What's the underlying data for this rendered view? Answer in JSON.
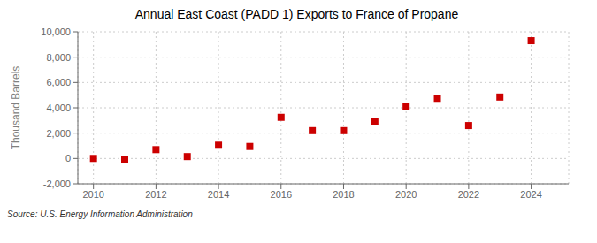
{
  "chart_data": {
    "type": "scatter",
    "title": "Annual East Coast (PADD 1) Exports to France of Propane",
    "ylabel": "Thousand Barrels",
    "source": "Source: U.S. Energy Information Administration",
    "x": [
      2010,
      2011,
      2012,
      2013,
      2014,
      2015,
      2016,
      2017,
      2018,
      2019,
      2020,
      2021,
      2022,
      2023,
      2024
    ],
    "values": [
      5,
      -60,
      700,
      150,
      1050,
      950,
      3250,
      2200,
      2200,
      2900,
      4100,
      4750,
      2600,
      4850,
      9300
    ],
    "color": "#cc0000",
    "marker": "square",
    "xlim": [
      2009.5,
      2025.2
    ],
    "xticks": [
      2010,
      2012,
      2014,
      2016,
      2018,
      2020,
      2022,
      2024
    ],
    "ylim": [
      -2000,
      10000
    ],
    "yticks": [
      {
        "value": -2000,
        "label": "-2,000"
      },
      0,
      {
        "value": 2000,
        "label": "2,000"
      },
      {
        "value": 4000,
        "label": "4,000"
      },
      {
        "value": 6000,
        "label": "6,000"
      },
      {
        "value": 8000,
        "label": "8,000"
      },
      {
        "value": 10000,
        "label": "10,000"
      }
    ],
    "grid": true
  }
}
